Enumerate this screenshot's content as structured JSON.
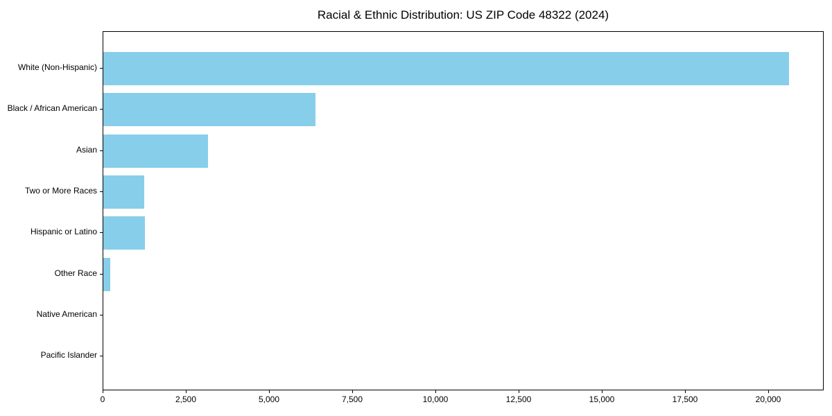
{
  "chart_data": {
    "type": "bar",
    "orientation": "horizontal",
    "title": "Racial & Ethnic Distribution: US ZIP Code 48322 (2024)",
    "categories": [
      "White (Non-Hispanic)",
      "Black / African American",
      "Asian",
      "Two or More Races",
      "Hispanic or Latino",
      "Other Race",
      "Native American",
      "Pacific Islander"
    ],
    "values": [
      20600,
      6380,
      3150,
      1230,
      1260,
      200,
      0,
      0
    ],
    "xlabel": "",
    "ylabel": "",
    "xlim": [
      0,
      21670
    ],
    "xticks": [
      0,
      2500,
      5000,
      7500,
      10000,
      12500,
      15000,
      17500,
      20000
    ],
    "xtick_labels": [
      "0",
      "2,500",
      "5,000",
      "7,500",
      "10,000",
      "12,500",
      "15,000",
      "17,500",
      "20,000"
    ],
    "bar_color": "#87CEEB",
    "axis_color": "#000000",
    "text_color": "#000000",
    "grid": false,
    "legend": null
  }
}
